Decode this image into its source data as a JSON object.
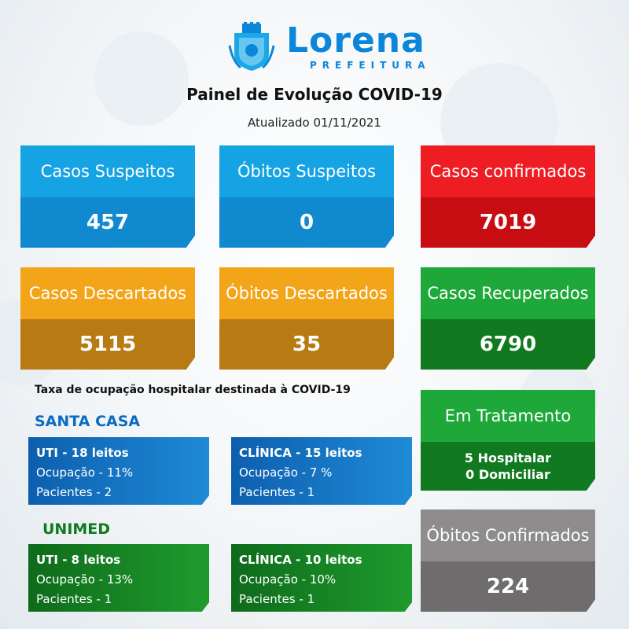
{
  "header": {
    "brand": "Lorena",
    "brand_sub": "PREFEITURA",
    "title": "Painel de Evolução COVID-19",
    "updated": "Atualizado 01/11/2021"
  },
  "cards": {
    "suspeitos": {
      "label": "Casos Suspeitos",
      "value": "457"
    },
    "obitos_suspeitos": {
      "label": "Óbitos Suspeitos",
      "value": "0"
    },
    "confirmados": {
      "label": "Casos confirmados",
      "value": "7019"
    },
    "descartados": {
      "label": "Casos Descartados",
      "value": "5115"
    },
    "obitos_descartados": {
      "label": "Óbitos Descartados",
      "value": "35"
    },
    "recuperados": {
      "label": "Casos Recuperados",
      "value": "6790"
    },
    "tratamento": {
      "label": "Em Tratamento",
      "line1": "5 Hospitalar",
      "line2": "0 Domiciliar"
    },
    "obitos_confirmados": {
      "label": "Óbitos Confirmados",
      "value": "224"
    }
  },
  "occupancy": {
    "title": "Taxa de ocupação hospitalar destinada à COVID-19",
    "santa_casa": {
      "name": "SANTA CASA",
      "uti": {
        "title": "UTI - 18 leitos",
        "ocupacao": "Ocupação - 11%",
        "pacientes": "Pacientes - 2"
      },
      "clinica": {
        "title": "CLÍNICA - 15 leitos",
        "ocupacao": "Ocupação -  7 %",
        "pacientes": "Pacientes - 1"
      }
    },
    "unimed": {
      "name": "UNIMED",
      "uti": {
        "title": "UTI - 8 leitos",
        "ocupacao": "Ocupação - 13%",
        "pacientes": "Pacientes - 1"
      },
      "clinica": {
        "title": "CLÍNICA - 10 leitos",
        "ocupacao": "Ocupação - 10%",
        "pacientes": "Pacientes - 1"
      }
    }
  },
  "colors": {
    "blue": "#16a3e3",
    "red": "#ee1d24",
    "orange": "#f3a51a",
    "green": "#1ea83a",
    "gray": "#8e8c8c",
    "brand": "#0b86d8"
  }
}
